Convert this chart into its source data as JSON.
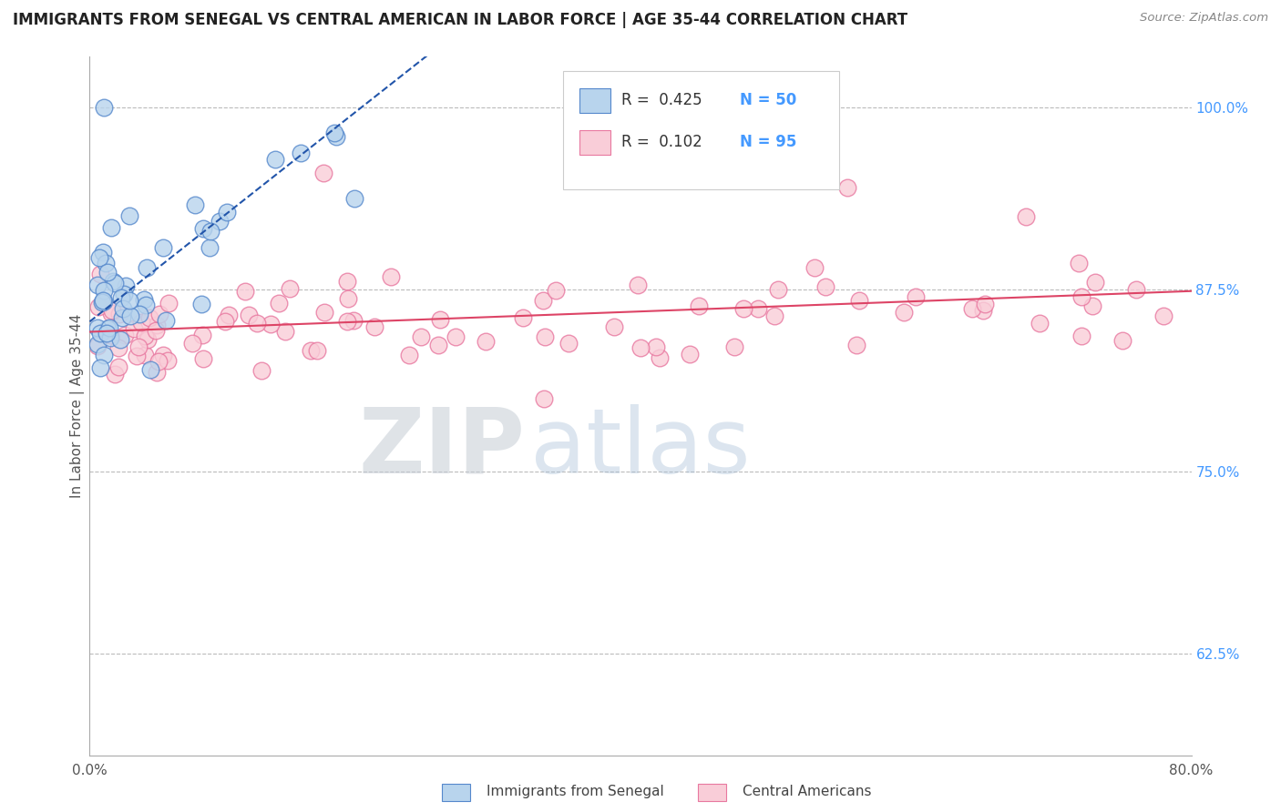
{
  "title": "IMMIGRANTS FROM SENEGAL VS CENTRAL AMERICAN IN LABOR FORCE | AGE 35-44 CORRELATION CHART",
  "source": "Source: ZipAtlas.com",
  "ylabel": "In Labor Force | Age 35-44",
  "xlim": [
    0.0,
    0.8
  ],
  "ylim": [
    0.555,
    1.035
  ],
  "ytick_right_labels": [
    "62.5%",
    "75.0%",
    "87.5%",
    "100.0%"
  ],
  "ytick_right_positions": [
    0.625,
    0.75,
    0.875,
    1.0
  ],
  "blue_r": 0.425,
  "blue_n": 50,
  "pink_r": 0.102,
  "pink_n": 95,
  "blue_fill": "#b8d4ed",
  "pink_fill": "#f9cdd8",
  "blue_edge": "#5588cc",
  "pink_edge": "#e878a0",
  "blue_trend_color": "#2255aa",
  "pink_trend_color": "#dd4466",
  "right_label_color": "#4499ff",
  "watermark_zip": "#c0ccd8",
  "watermark_atlas": "#aabbcc",
  "background_color": "#ffffff",
  "grid_color": "#bbbbbb",
  "title_color": "#222222",
  "source_color": "#888888",
  "ylabel_color": "#555555",
  "xtick_color": "#555555"
}
